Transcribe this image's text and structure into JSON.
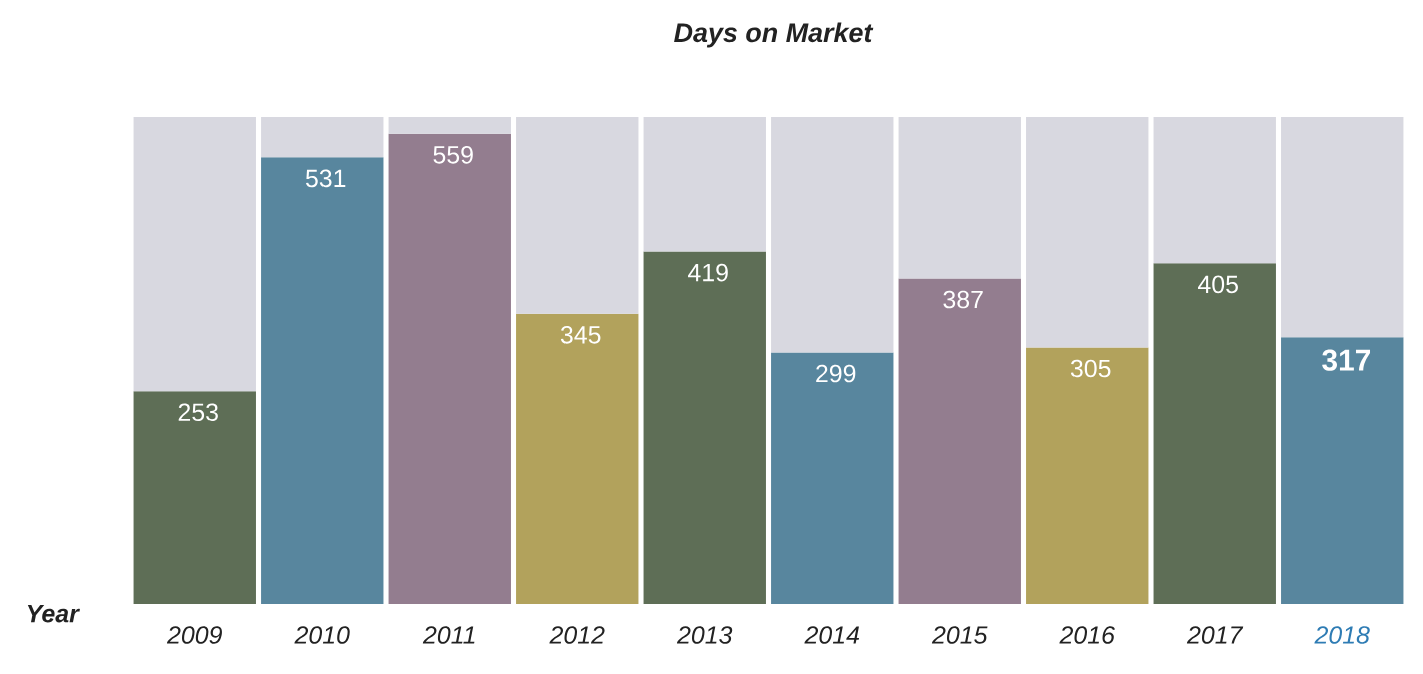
{
  "chart_data": {
    "type": "bar",
    "stacked": true,
    "title": "Days on Market",
    "xlabel": "Year",
    "categories": [
      "2009",
      "2010",
      "2011",
      "2012",
      "2013",
      "2014",
      "2015",
      "2016",
      "2017",
      "2018"
    ],
    "series": [
      {
        "colors": [
          "#5e6e56",
          "#58869e",
          "#937d8f",
          "#b2a25c",
          "#5e6e56",
          "#58869e",
          "#937d8f",
          "#b2a25c",
          "#5e6e56",
          "#58869e"
        ],
        "values": [
          253,
          531,
          559,
          345,
          419,
          299,
          387,
          305,
          405,
          317
        ],
        "value_labels": [
          "253",
          "531",
          "559",
          "345",
          "419",
          "299",
          "387",
          "305",
          "405",
          "317"
        ]
      },
      {
        "color": "#d8d8e0",
        "values": [
          326,
          48,
          20,
          234,
          160,
          280,
          192,
          274,
          174,
          262
        ]
      }
    ]
  }
}
